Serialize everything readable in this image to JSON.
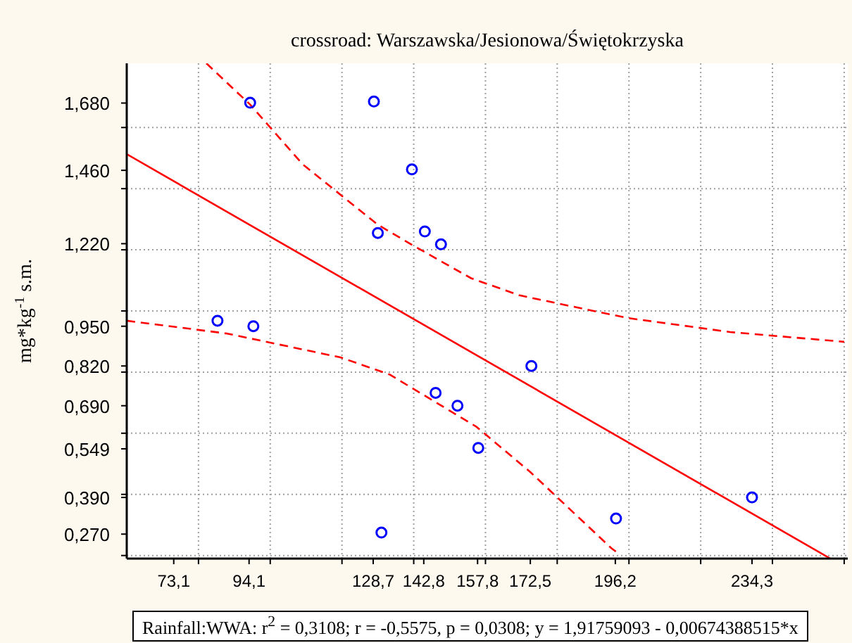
{
  "chart_data": {
    "type": "scatter",
    "title": "crossroad: Warszawska/Jesionowa/Świętokrzyska",
    "ylabel": "mg*kg$^{-1}$ s.m.",
    "annotations": [
      "Rainfall:WWA:  r$^{2}$ = 0,3108;  r = -0,5575, p = 0,0308;  y = 1,91759093 - 0,00674388515*x"
    ],
    "xlim": [
      60,
      261
    ],
    "ylim": [
      0.19,
      1.81
    ],
    "xticks": [
      {
        "value": 73.1,
        "label": "73,1"
      },
      {
        "value": 94.1,
        "label": "94,1"
      },
      {
        "value": 128.7,
        "label": "128,7"
      },
      {
        "value": 142.8,
        "label": "142,8"
      },
      {
        "value": 157.8,
        "label": "157,8"
      },
      {
        "value": 172.5,
        "label": "172,5"
      },
      {
        "value": 196.2,
        "label": "196,2"
      },
      {
        "value": 234.3,
        "label": "234,3"
      },
      {
        "value": 80,
        "label": null
      },
      {
        "value": 100,
        "label": null
      },
      {
        "value": 120,
        "label": null
      },
      {
        "value": 140,
        "label": null
      },
      {
        "value": 160,
        "label": null
      },
      {
        "value": 180,
        "label": null
      },
      {
        "value": 200,
        "label": null
      },
      {
        "value": 220,
        "label": null
      },
      {
        "value": 240,
        "label": null
      },
      {
        "value": 260,
        "label": null
      }
    ],
    "yticks": [
      {
        "value": 0.27,
        "label": "0,270"
      },
      {
        "value": 0.39,
        "label": "0,390"
      },
      {
        "value": 0.549,
        "label": "0,549"
      },
      {
        "value": 0.69,
        "label": "0,690"
      },
      {
        "value": 0.82,
        "label": "0,820"
      },
      {
        "value": 0.95,
        "label": "0,950"
      },
      {
        "value": 1.22,
        "label": "1,220"
      },
      {
        "value": 1.46,
        "label": "1,460"
      },
      {
        "value": 1.68,
        "label": "1,680"
      },
      {
        "value": 0.2,
        "label": null
      },
      {
        "value": 0.4,
        "label": null
      },
      {
        "value": 0.6,
        "label": null
      },
      {
        "value": 0.8,
        "label": null
      },
      {
        "value": 1.0,
        "label": null
      },
      {
        "value": 1.2,
        "label": null
      },
      {
        "value": 1.4,
        "label": null
      },
      {
        "value": 1.6,
        "label": null
      }
    ],
    "grid": true,
    "series": [
      {
        "color": "#0000ff",
        "marker": "circle",
        "x": [
          94.4,
          128.9,
          139.5,
          130.0,
          143.1,
          147.6,
          85.3,
          95.3,
          172.8,
          146.1,
          152.2,
          158.0,
          131.0,
          196.4,
          234.3
        ],
        "values": [
          1.681,
          1.685,
          1.463,
          1.255,
          1.26,
          1.218,
          0.968,
          0.95,
          0.82,
          0.732,
          0.69,
          0.552,
          0.275,
          0.321,
          0.39
        ]
      },
      {
        "type": "line",
        "color": "#ff0000",
        "line_style": "solid",
        "marker": "none",
        "x": [
          60,
          256
        ],
        "values": [
          1.513,
          0.191
        ]
      },
      {
        "type": "line",
        "color": "#ff0000",
        "line_style": "dashed",
        "marker": "none",
        "x": [
          82.2,
          94.4,
          109,
          130,
          140,
          156,
          169.5,
          190.6,
          199.6,
          228.2,
          260
        ],
        "values": [
          1.81,
          1.675,
          1.48,
          1.282,
          1.213,
          1.107,
          1.051,
          0.999,
          0.977,
          0.931,
          0.899
        ]
      },
      {
        "type": "line",
        "color": "#ff0000",
        "line_style": "dashed",
        "marker": "none",
        "x": [
          60,
          88,
          119.6,
          133.3,
          157.5,
          172.5,
          195.1,
          197.3
        ],
        "values": [
          0.968,
          0.926,
          0.848,
          0.792,
          0.621,
          0.473,
          0.224,
          0.205
        ]
      }
    ]
  }
}
